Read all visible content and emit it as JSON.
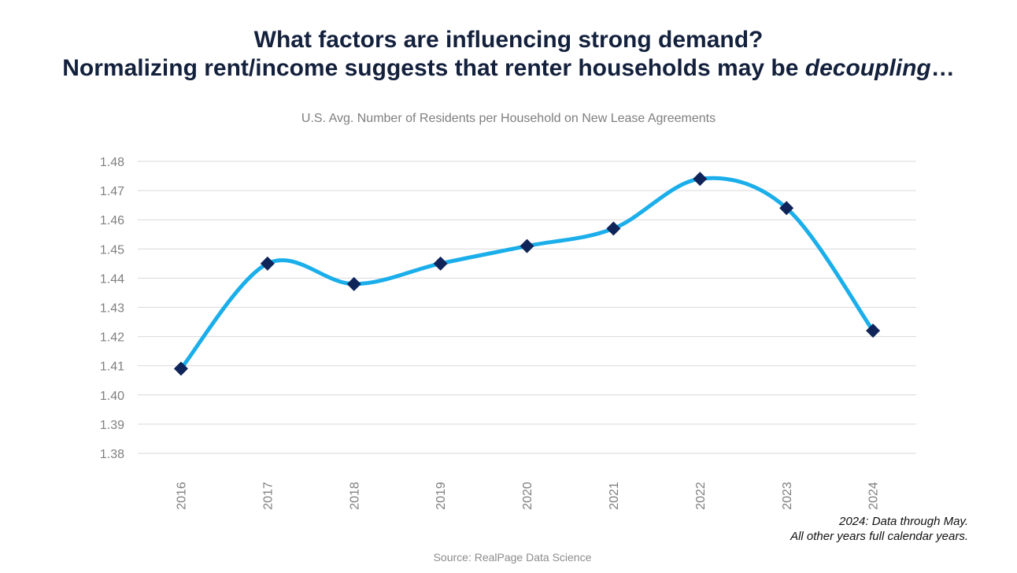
{
  "headline": {
    "line1": "What factors are influencing strong demand?",
    "line2_prefix": "Normalizing rent/income suggests that renter households may be ",
    "line2_emphasis": "decoupling",
    "line2_suffix": "…"
  },
  "chart_data": {
    "type": "line",
    "title": "U.S. Avg. Number of Residents per Household on New Lease Agreements",
    "categories": [
      "2016",
      "2017",
      "2018",
      "2019",
      "2020",
      "2021",
      "2022",
      "2023",
      "2024"
    ],
    "series": [
      {
        "values": [
          1.409,
          1.445,
          1.438,
          1.445,
          1.451,
          1.457,
          1.474,
          1.464,
          1.422
        ],
        "line_color": "#1aaeea",
        "marker": "diamond",
        "marker_color": "#0f2459"
      }
    ],
    "ylim": [
      1.38,
      1.48
    ],
    "yticks": [
      "1.38",
      "1.39",
      "1.40",
      "1.41",
      "1.42",
      "1.43",
      "1.44",
      "1.45",
      "1.46",
      "1.47",
      "1.48"
    ],
    "grid": "horizontal",
    "smooth": true,
    "xlabel": "",
    "ylabel": ""
  },
  "notes": {
    "line1": "2024: Data through May.",
    "line2": "All other years full calendar years."
  },
  "source": "Source: RealPage Data Science"
}
